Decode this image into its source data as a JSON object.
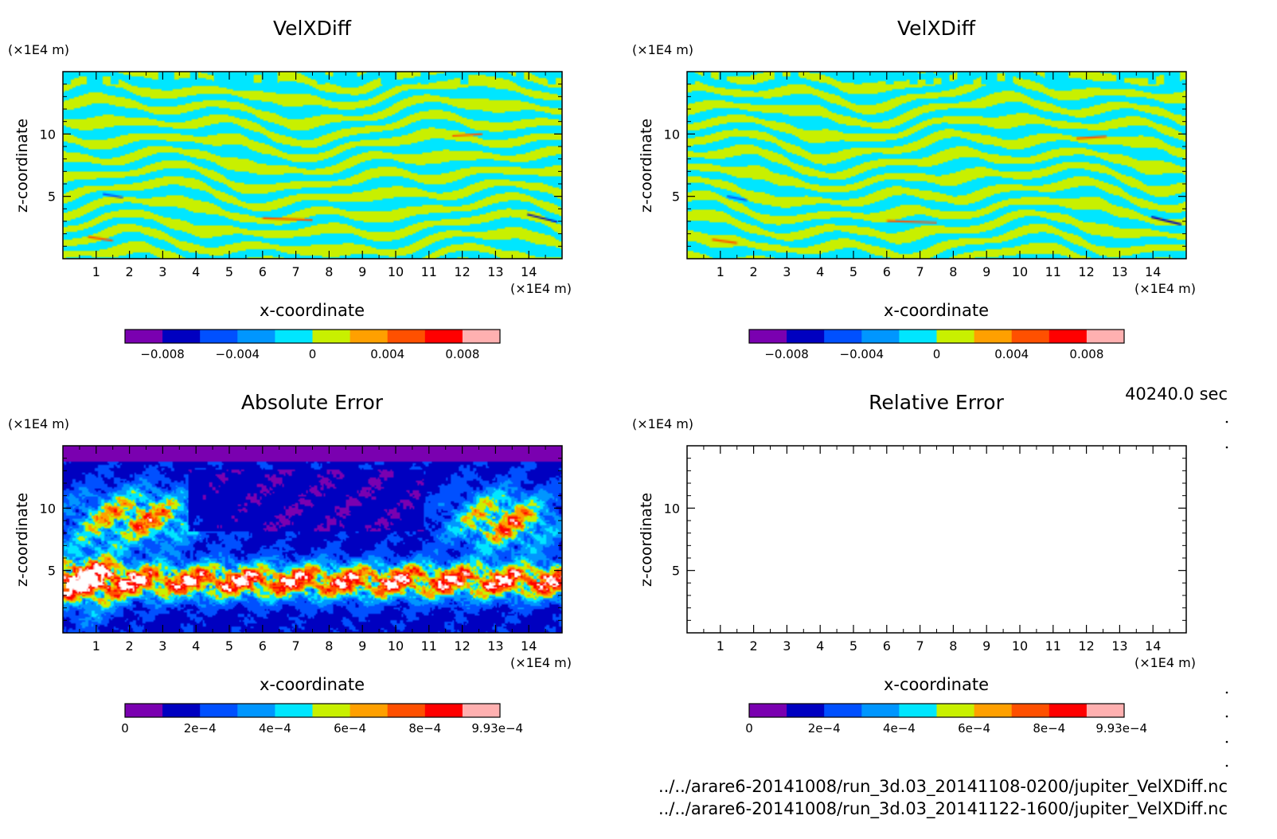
{
  "time_label": "40240.0 sec",
  "files": [
    "../../arare6-20141008/run_3d.03_20141108-0200/jupiter_VelXDiff.nc",
    "../../arare6-20141008/run_3d.03_20141122-1600/jupiter_VelXDiff.nc"
  ],
  "colors": {
    "ramp": [
      "#7a00b0",
      "#0000c0",
      "#0050ff",
      "#0096ff",
      "#00e6ff",
      "#c8f000",
      "#ffa000",
      "#ff5000",
      "#ff0000",
      "#ffb0b0"
    ],
    "frame": "#000000"
  },
  "chart_data": [
    {
      "type": "heatmap",
      "title": "VelXDiff",
      "xlabel": "x-coordinate",
      "ylabel": "z-coordinate",
      "x_unit": "(×1E4 m)",
      "y_unit": "(×1E4 m)",
      "xlim": [
        0,
        15
      ],
      "ylim": [
        0,
        15
      ],
      "x_ticks": [
        "1",
        "2",
        "3",
        "4",
        "5",
        "6",
        "7",
        "8",
        "9",
        "10",
        "11",
        "12",
        "13",
        "14"
      ],
      "y_ticks": [
        "5",
        "10"
      ],
      "colorbar": {
        "range": [
          -0.01,
          0.01
        ],
        "tick_labels": [
          "-0.008",
          "-0.004",
          "0",
          "0.004",
          "0.008"
        ],
        "tick_values": [
          -0.008,
          -0.004,
          0,
          0.004,
          0.008
        ]
      },
      "field": "stripes"
    },
    {
      "type": "heatmap",
      "title": "VelXDiff",
      "xlabel": "x-coordinate",
      "ylabel": "z-coordinate",
      "x_unit": "(×1E4 m)",
      "y_unit": "(×1E4 m)",
      "xlim": [
        0,
        15
      ],
      "ylim": [
        0,
        15
      ],
      "x_ticks": [
        "1",
        "2",
        "3",
        "4",
        "5",
        "6",
        "7",
        "8",
        "9",
        "10",
        "11",
        "12",
        "13",
        "14"
      ],
      "y_ticks": [
        "5",
        "10"
      ],
      "colorbar": {
        "range": [
          -0.01,
          0.01
        ],
        "tick_labels": [
          "-0.008",
          "-0.004",
          "0",
          "0.004",
          "0.008"
        ],
        "tick_values": [
          -0.008,
          -0.004,
          0,
          0.004,
          0.008
        ]
      },
      "field": "stripes"
    },
    {
      "type": "heatmap",
      "title": "Absolute Error",
      "xlabel": "x-coordinate",
      "ylabel": "z-coordinate",
      "x_unit": "(×1E4 m)",
      "y_unit": "(×1E4 m)",
      "xlim": [
        0,
        15
      ],
      "ylim": [
        0,
        15
      ],
      "x_ticks": [
        "1",
        "2",
        "3",
        "4",
        "5",
        "6",
        "7",
        "8",
        "9",
        "10",
        "11",
        "12",
        "13",
        "14"
      ],
      "y_ticks": [
        "5",
        "10"
      ],
      "colorbar": {
        "range": [
          0,
          0.001
        ],
        "tick_labels": [
          "0",
          "2e-4",
          "4e-4",
          "6e-4",
          "8e-4",
          "9.93e-4"
        ],
        "tick_values": [
          0,
          0.0002,
          0.0004,
          0.0006,
          0.0008,
          0.000993
        ]
      },
      "field": "error"
    },
    {
      "type": "heatmap",
      "title": "Relative Error",
      "xlabel": "x-coordinate",
      "ylabel": "z-coordinate",
      "x_unit": "(×1E4 m)",
      "y_unit": "(×1E4 m)",
      "xlim": [
        0,
        15
      ],
      "ylim": [
        0,
        15
      ],
      "x_ticks": [
        "1",
        "2",
        "3",
        "4",
        "5",
        "6",
        "7",
        "8",
        "9",
        "10",
        "11",
        "12",
        "13",
        "14"
      ],
      "y_ticks": [
        "5",
        "10"
      ],
      "colorbar": {
        "range": [
          0,
          0.001
        ],
        "tick_labels": [
          "0",
          "2e-4",
          "4e-4",
          "6e-4",
          "8e-4",
          "9.93e-4"
        ],
        "tick_values": [
          0,
          0.0002,
          0.0004,
          0.0006,
          0.0008,
          0.000993
        ]
      },
      "field": "empty"
    }
  ]
}
